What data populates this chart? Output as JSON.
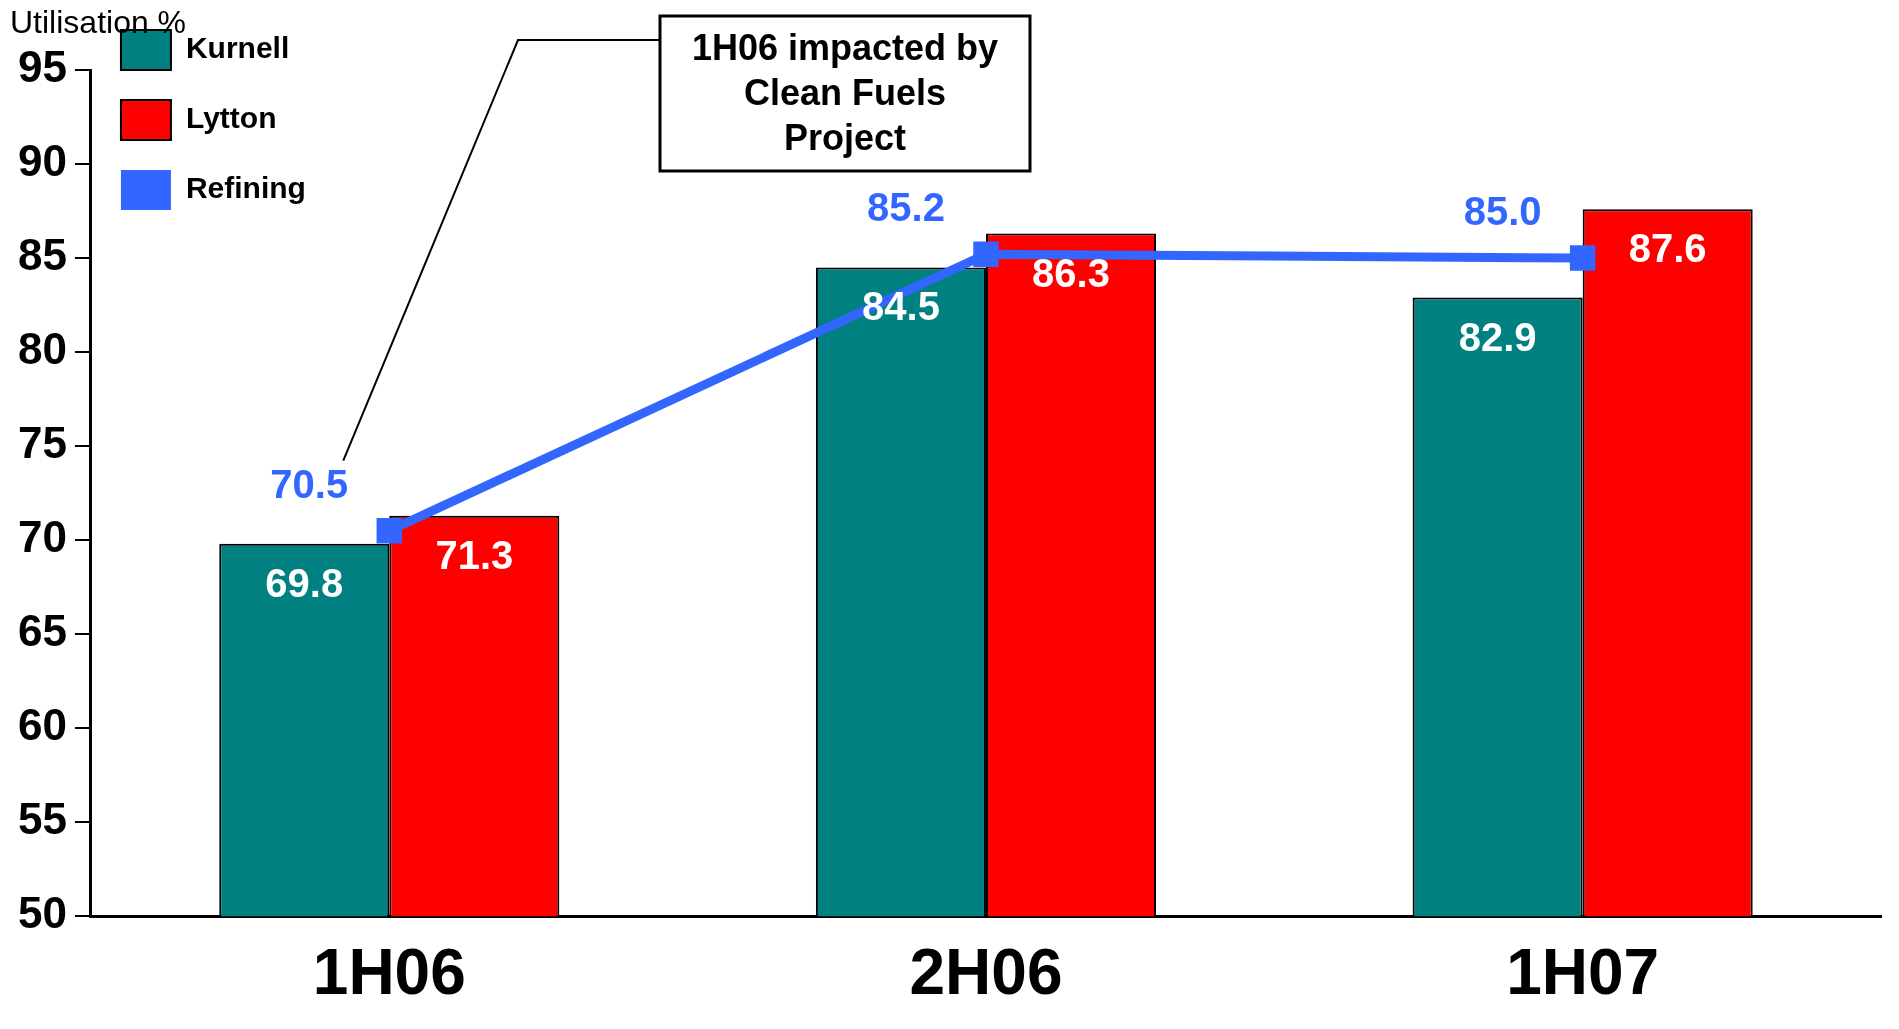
{
  "chart_data": {
    "type": "bar",
    "ylabel": "Utilisation %",
    "categories": [
      "1H06",
      "2H06",
      "1H07"
    ],
    "series": [
      {
        "name": "Kurnell",
        "color": "#008080",
        "values": [
          69.8,
          84.5,
          82.9
        ],
        "value_labels": [
          "69.8",
          "84.5",
          "82.9"
        ]
      },
      {
        "name": "Lytton",
        "color": "#ff0000",
        "values": [
          71.3,
          86.3,
          87.6
        ],
        "value_labels": [
          "71.3",
          "86.3",
          "87.6"
        ]
      },
      {
        "name": "Refining",
        "type": "line",
        "color": "#3366ff",
        "values": [
          70.5,
          85.2,
          85.0
        ],
        "value_labels": [
          "70.5",
          "85.2",
          "85.0"
        ],
        "marker": "square"
      }
    ],
    "ylim": [
      50,
      95
    ],
    "yticks": [
      50,
      55,
      60,
      65,
      70,
      75,
      80,
      85,
      90,
      95
    ],
    "grid": false,
    "legend": "top left",
    "annotations": [
      "1H06 impacted by Clean Fuels Project"
    ]
  }
}
